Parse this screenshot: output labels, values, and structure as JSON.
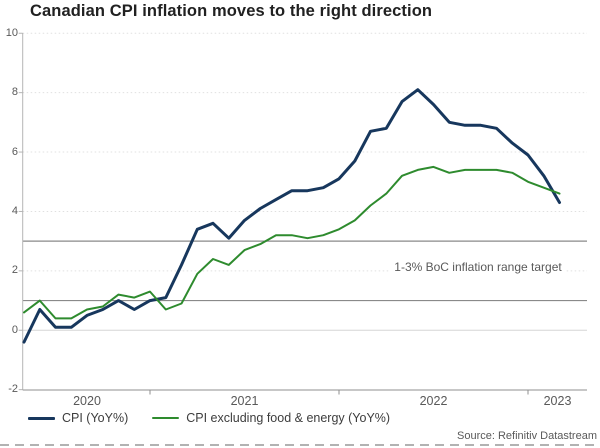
{
  "title": "Canadian CPI inflation moves to the right direction",
  "source": "Source: Refinitiv Datastream",
  "annotation": "1-3% BoC inflation range target",
  "colors": {
    "cpi_line": "#17375D",
    "core_line": "#2E8B2E",
    "grid_dotted": "#e0e0e0",
    "zero_line": "#d6d6d6",
    "band_line": "#8a8a8a",
    "axis_left": "#b5b5b5",
    "axis_bottom": "#8f8f8f",
    "tick_text": "#595959",
    "dashed_rule": "#b2b2b2"
  },
  "chart_data": {
    "type": "line",
    "title": "Canadian CPI inflation moves to the right direction",
    "xlabel": "",
    "ylabel": "",
    "ylim": [
      -2,
      10
    ],
    "y_ticks": [
      10,
      8,
      6,
      4,
      2,
      0,
      -2
    ],
    "grid": "horizontal-dotted",
    "legend_position": "bottom-left",
    "frequency": "monthly",
    "x_start": "2020-05",
    "x_end": "2023-03",
    "x_tick_labels": [
      "2020",
      "2021",
      "2022",
      "2023"
    ],
    "x_year_boundary_month_index": [
      8,
      20,
      32
    ],
    "reference_lines": {
      "values": [
        1,
        3
      ],
      "label": "1-3% BoC inflation range target"
    },
    "series": [
      {
        "name": "CPI (YoY%)",
        "color": "#17375D",
        "width": 3,
        "values": [
          -0.4,
          0.7,
          0.1,
          0.1,
          0.5,
          0.7,
          1.0,
          0.7,
          1.0,
          1.1,
          2.2,
          3.4,
          3.6,
          3.1,
          3.7,
          4.1,
          4.4,
          4.7,
          4.7,
          4.8,
          5.1,
          5.7,
          6.7,
          6.8,
          7.7,
          8.1,
          7.6,
          7.0,
          6.9,
          6.9,
          6.8,
          6.3,
          5.9,
          5.2,
          4.3
        ]
      },
      {
        "name": "CPI excluding food & energy (YoY%)",
        "color": "#2E8B2E",
        "width": 2,
        "values": [
          0.6,
          1.0,
          0.4,
          0.4,
          0.7,
          0.8,
          1.2,
          1.1,
          1.3,
          0.7,
          0.9,
          1.9,
          2.4,
          2.2,
          2.7,
          2.9,
          3.2,
          3.2,
          3.1,
          3.2,
          3.4,
          3.7,
          4.2,
          4.6,
          5.2,
          5.4,
          5.5,
          5.3,
          5.4,
          5.4,
          5.4,
          5.3,
          5.0,
          4.8,
          4.6
        ]
      }
    ]
  }
}
